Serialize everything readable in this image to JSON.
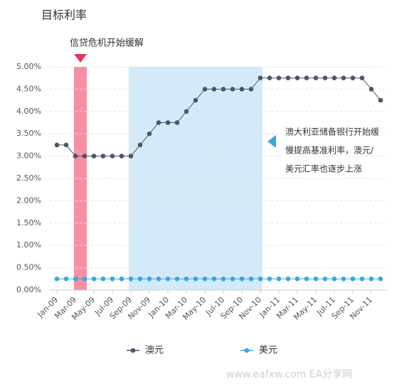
{
  "chart_data": {
    "type": "line",
    "title": "目标利率",
    "annotations": {
      "crisis": "信贷危机开始缓解",
      "rba": [
        "澳大利亚储备银行开始缓",
        "慢提高基准利率，澳元/",
        "美元汇率也逐步上涨"
      ]
    },
    "watermark": "www.eafxw.com   EA分享网",
    "categories": [
      "Jan-09",
      null,
      "Mar-09",
      null,
      "May-09",
      null,
      "Jul-09",
      null,
      "Sep-09",
      null,
      "Nov-09",
      null,
      "Jan-10",
      null,
      "Mar-10",
      null,
      "May-10",
      null,
      "Jul-10",
      null,
      "Sep-10",
      null,
      "Nov-10",
      null,
      "Jan-11",
      null,
      "Mar-11",
      null,
      "May-11",
      null,
      "Jul-11",
      null,
      "Sep-11",
      null,
      "Nov-11",
      null
    ],
    "series": [
      {
        "name": "澳元",
        "color": "#4d5668",
        "values": [
          3.25,
          3.25,
          3.0,
          3.0,
          3.0,
          3.0,
          3.0,
          3.0,
          3.0,
          3.25,
          3.5,
          3.75,
          3.75,
          3.75,
          4.0,
          4.25,
          4.5,
          4.5,
          4.5,
          4.5,
          4.5,
          4.5,
          4.75,
          4.75,
          4.75,
          4.75,
          4.75,
          4.75,
          4.75,
          4.75,
          4.75,
          4.75,
          4.75,
          4.75,
          4.5,
          4.25
        ]
      },
      {
        "name": "美元",
        "color": "#3ba6e0",
        "values": [
          0.25,
          0.25,
          0.25,
          0.25,
          0.25,
          0.25,
          0.25,
          0.25,
          0.25,
          0.25,
          0.25,
          0.25,
          0.25,
          0.25,
          0.25,
          0.25,
          0.25,
          0.25,
          0.25,
          0.25,
          0.25,
          0.25,
          0.25,
          0.25,
          0.25,
          0.25,
          0.25,
          0.25,
          0.25,
          0.25,
          0.25,
          0.25,
          0.25,
          0.25,
          0.25,
          0.25
        ]
      }
    ],
    "ylim": [
      0,
      5
    ],
    "yticks": [
      {
        "value": 0,
        "label": "0.00%"
      },
      {
        "value": 0.5,
        "label": "0.50%"
      },
      {
        "value": 1,
        "label": "1.00%"
      },
      {
        "value": 1.5,
        "label": "1.50%"
      },
      {
        "value": 2,
        "label": "2.00%"
      },
      {
        "value": 2.5,
        "label": "2.50%"
      },
      {
        "value": 3,
        "label": "3.00%"
      },
      {
        "value": 3.5,
        "label": "3.50%"
      },
      {
        "value": 4,
        "label": "4.00%"
      },
      {
        "value": 4.5,
        "label": "4.50%"
      },
      {
        "value": 5,
        "label": "5.00%"
      }
    ],
    "grid": true,
    "legend": "bottom"
  }
}
